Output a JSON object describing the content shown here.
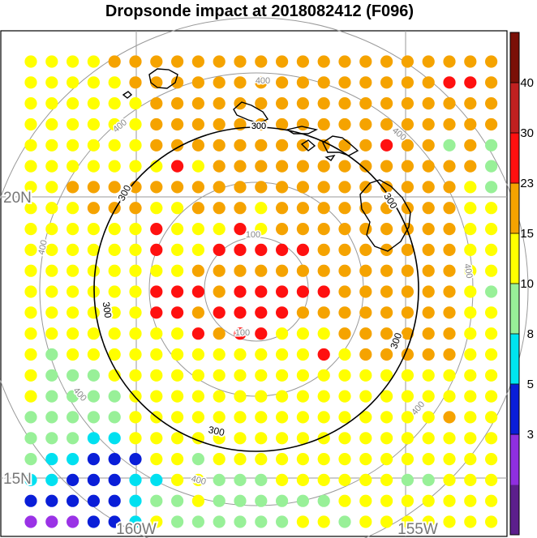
{
  "title": "Dropsonde impact at 2018082412 (F096)",
  "map": {
    "lon_labels": [
      "160W",
      "155W"
    ],
    "lat_labels": [
      "20N",
      "15N"
    ],
    "ring_labels": {
      "black": "300",
      "gray_100": "100",
      "gray_400": "400"
    }
  },
  "colorbar": {
    "tick_labels": [
      "40",
      "30",
      "23",
      "15",
      "10",
      "8",
      "5",
      "3"
    ],
    "colors": [
      "#5c1f8c",
      "#8f2fe0",
      "#0a1ed8",
      "#00e5f0",
      "#98f098",
      "#ffff00",
      "#f5a300",
      "#ff1010",
      "#c02020",
      "#7a1008"
    ]
  },
  "grid": {
    "row_codes": [
      "YYYYOOOOOOOOOOOOOOOOOOO",
      "YYYYYOOOOOOOOOOOOOOORRO",
      "YYYYYYOOOOOOOOOOOOOOOOO",
      "YYYYYYOOOOOOOOOOOOOOOOO",
      "YYYYYYOOOOOOOOOOOROOGOG",
      "YYYYYYYRYOOOOOOOOOOOOOG",
      "YYOOOOOOOOOOOOOOOOOOOYG",
      "YYYOOOYYOOOYOOOOOOOOOYY",
      "YYYYYYRYYYRYOOOOOOOOOYY",
      "YYYYYYRYYRRRRROOOOOOOYY",
      "YYYYYYYYOOOOOOOOOOOOOYY",
      "YYYYYYRRRORRRRROOOOOOYG",
      "YYYYYYRRORRRROOOOOOOOYY",
      "YYYYYYYYRORRYYYOOOOOOYY",
      "YGYYYYYYYYYYYYRYOOOOOYY",
      "YGGGYYYYYYYYYYYYYYYYYYY",
      "YGGGGYYYYYYYYYYYYYYYYYY",
      "GGGGGYYYYYYYYYYYYYYYOYY",
      "GGGCCYYYYYYYYYYYYYYYYYY",
      "GCCBBBYYGYYYYYYYYYYYYYY",
      "CCBBBCCYYGGGYYYYYYGGYYY",
      "BBBBBCGGYGGGGGGYYYYYYYY",
      "PPPBBCYGGGGGGYYGYYYYYYY"
    ],
    "color_key": {
      "P": "#9a32e6",
      "B": "#0a1ed8",
      "C": "#00e0f0",
      "G": "#98f098",
      "Y": "#ffff00",
      "O": "#f5a300",
      "R": "#ff1010"
    }
  }
}
